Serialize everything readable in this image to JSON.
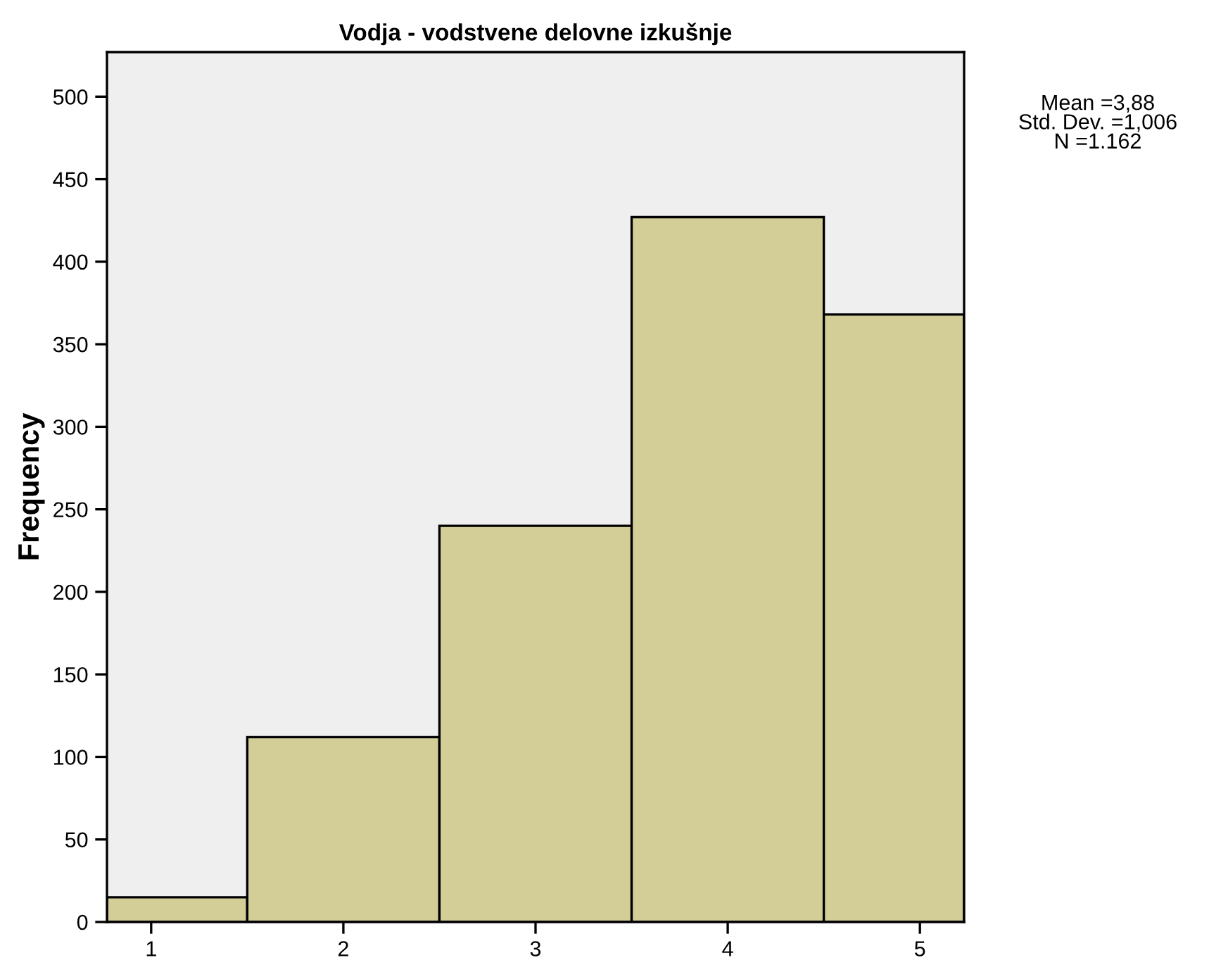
{
  "chart_data": {
    "type": "histogram",
    "title": "Vodja - vodstvene delovne izkušnje",
    "ylabel": "Frequency",
    "bins": [
      0.77,
      1.5,
      2.5,
      3.5,
      4.5,
      5.23
    ],
    "values": [
      15,
      112,
      240,
      427,
      368
    ],
    "color": "#d3ce98",
    "xlim": [
      0.77,
      5.23
    ],
    "xticks": [
      1,
      2,
      3,
      4,
      5
    ],
    "ylim": [
      0,
      527
    ],
    "yticks": [
      0,
      50,
      100,
      150,
      200,
      250,
      300,
      350,
      400,
      450,
      500
    ],
    "grid": false,
    "annotations": [
      "Mean =3,88\nStd. Dev. =1,006\nN =1.162"
    ]
  }
}
